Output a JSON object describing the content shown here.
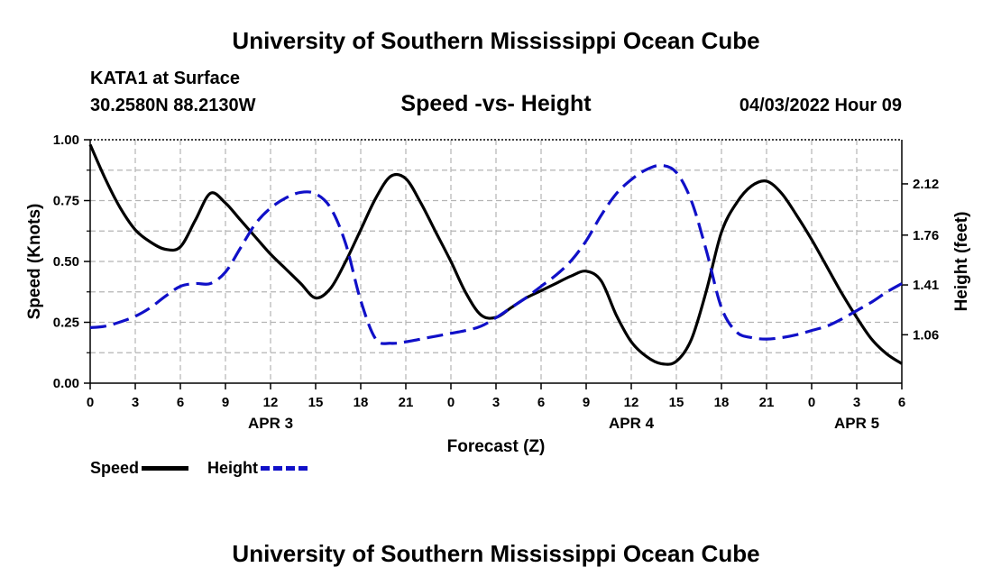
{
  "page": {
    "title_top": "University of Southern Mississippi Ocean Cube",
    "title_bottom": "University of Southern Mississippi Ocean Cube",
    "station": "KATA1 at Surface",
    "coords": "30.2580N  88.2130W",
    "chart_title": "Speed -vs- Height",
    "timestamp": "04/03/2022 Hour 09"
  },
  "colors": {
    "speed": "#000000",
    "height": "#1010c8",
    "grid": "#b4b4b4"
  },
  "chart_data": {
    "type": "line",
    "title": "Speed -vs- Height",
    "xlabel": "Forecast (Z)",
    "ylabel_left": "Speed (Knots)",
    "ylabel_right": "Height (feet)",
    "x_range": [
      0,
      54
    ],
    "x_ticks": [
      0,
      3,
      6,
      9,
      12,
      15,
      18,
      21,
      24,
      27,
      30,
      33,
      36,
      39,
      42,
      45,
      48,
      51,
      54
    ],
    "x_tick_labels": [
      "0",
      "3",
      "6",
      "9",
      "12",
      "15",
      "18",
      "21",
      "0",
      "3",
      "6",
      "9",
      "12",
      "15",
      "18",
      "21",
      "0",
      "3",
      "6"
    ],
    "date_labels": [
      {
        "x": 12,
        "label": "APR 3"
      },
      {
        "x": 36,
        "label": "APR 4"
      },
      {
        "x": 51,
        "label": "APR 5"
      }
    ],
    "y_left_range": [
      0,
      1
    ],
    "y_left_ticks": [
      0,
      0.25,
      0.5,
      0.75,
      1.0
    ],
    "y_left_tick_labels": [
      "0.00",
      "0.25",
      "0.50",
      "0.75",
      "1.00"
    ],
    "y_right_range": [
      0.72,
      2.43
    ],
    "y_right_ticks": [
      1.06,
      1.41,
      1.76,
      2.12
    ],
    "y_right_tick_labels": [
      "1.06",
      "1.41",
      "1.76",
      "2.12"
    ],
    "series": [
      {
        "name": "Speed",
        "axis": "left",
        "style": "solid",
        "x": [
          0,
          1,
          2,
          3,
          4,
          5,
          6,
          7,
          8,
          9,
          10,
          11,
          12,
          13,
          14,
          15,
          16,
          17,
          18,
          19,
          20,
          21,
          22,
          23,
          24,
          25,
          26,
          27,
          28,
          29,
          30,
          31,
          32,
          33,
          34,
          35,
          36,
          37,
          38,
          39,
          40,
          41,
          42,
          43,
          44,
          45,
          46,
          47,
          48,
          49,
          50,
          51,
          52,
          53,
          54
        ],
        "values": [
          0.98,
          0.84,
          0.72,
          0.63,
          0.58,
          0.55,
          0.56,
          0.67,
          0.78,
          0.74,
          0.67,
          0.6,
          0.53,
          0.47,
          0.41,
          0.35,
          0.39,
          0.5,
          0.63,
          0.76,
          0.85,
          0.84,
          0.74,
          0.62,
          0.5,
          0.37,
          0.28,
          0.27,
          0.31,
          0.35,
          0.38,
          0.41,
          0.44,
          0.46,
          0.42,
          0.28,
          0.17,
          0.11,
          0.08,
          0.09,
          0.18,
          0.38,
          0.62,
          0.74,
          0.81,
          0.83,
          0.78,
          0.69,
          0.59,
          0.48,
          0.37,
          0.27,
          0.18,
          0.12,
          0.08
        ]
      },
      {
        "name": "Height",
        "axis": "right",
        "style": "dashed",
        "x": [
          0,
          1,
          2,
          3,
          4,
          5,
          6,
          7,
          8,
          9,
          10,
          11,
          12,
          13,
          14,
          15,
          16,
          17,
          18,
          19,
          20,
          21,
          22,
          23,
          24,
          25,
          26,
          27,
          28,
          29,
          30,
          31,
          32,
          33,
          34,
          35,
          36,
          37,
          38,
          39,
          40,
          41,
          42,
          43,
          44,
          45,
          46,
          47,
          48,
          49,
          50,
          51,
          52,
          53,
          54
        ],
        "values": [
          1.11,
          1.12,
          1.15,
          1.19,
          1.25,
          1.33,
          1.4,
          1.42,
          1.42,
          1.5,
          1.67,
          1.84,
          1.95,
          2.02,
          2.06,
          2.05,
          1.95,
          1.7,
          1.3,
          1.03,
          1.0,
          1.01,
          1.03,
          1.05,
          1.07,
          1.09,
          1.12,
          1.18,
          1.25,
          1.32,
          1.4,
          1.48,
          1.58,
          1.72,
          1.9,
          2.05,
          2.15,
          2.22,
          2.25,
          2.2,
          2.0,
          1.65,
          1.25,
          1.08,
          1.04,
          1.03,
          1.04,
          1.06,
          1.09,
          1.12,
          1.17,
          1.23,
          1.29,
          1.36,
          1.42
        ]
      }
    ],
    "legend": [
      {
        "name": "Speed",
        "style": "solid"
      },
      {
        "name": "Height",
        "style": "dashed"
      }
    ],
    "grid": true
  }
}
